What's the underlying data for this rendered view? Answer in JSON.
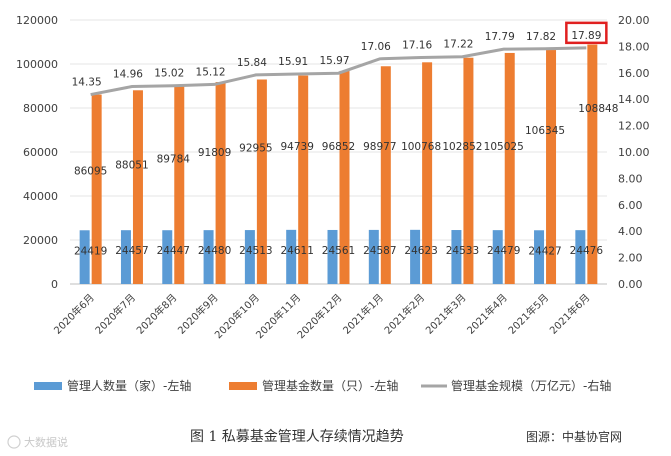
{
  "chart_data": {
    "type": "bar+line",
    "categories": [
      "2020年6月",
      "2020年7月",
      "2020年8月",
      "2020年9月",
      "2020年10月",
      "2020年11月",
      "2020年12月",
      "2021年1月",
      "2021年2月",
      "2021年3月",
      "2021年4月",
      "2021年5月",
      "2021年6月"
    ],
    "series": [
      {
        "name": "管理人数量（家）-左轴",
        "type": "bar",
        "axis": "left",
        "color": "#5B9BD5",
        "values": [
          24419,
          24457,
          24447,
          24480,
          24513,
          24611,
          24561,
          24587,
          24623,
          24533,
          24479,
          24427,
          24476
        ]
      },
      {
        "name": "管理基金数量（只）-左轴",
        "type": "bar",
        "axis": "left",
        "color": "#ED7D31",
        "values": [
          86095,
          88051,
          89784,
          91809,
          92955,
          94739,
          96852,
          98977,
          100768,
          102852,
          105025,
          106345,
          108848
        ]
      },
      {
        "name": "管理基金规模（万亿元）-右轴",
        "type": "line",
        "axis": "right",
        "color": "#A5A5A5",
        "values": [
          14.35,
          14.96,
          15.02,
          15.12,
          15.84,
          15.91,
          15.97,
          17.06,
          17.16,
          17.22,
          17.79,
          17.82,
          17.89
        ]
      }
    ],
    "left_axis": {
      "min": 0,
      "max": 120000,
      "ticks": [
        "0",
        "20000",
        "40000",
        "60000",
        "80000",
        "100000",
        "120000"
      ]
    },
    "right_axis": {
      "min": 0,
      "max": 20,
      "ticks": [
        "0.00",
        "2.00",
        "4.00",
        "6.00",
        "8.00",
        "10.00",
        "12.00",
        "14.00",
        "16.00",
        "18.00",
        "20.00"
      ]
    },
    "highlight_label": "17.89",
    "highlight_color": "#E02020"
  },
  "caption": "图 1  私募基金管理人存续情况趋势",
  "source": "图源：中基协官网",
  "watermark": "大数据说"
}
